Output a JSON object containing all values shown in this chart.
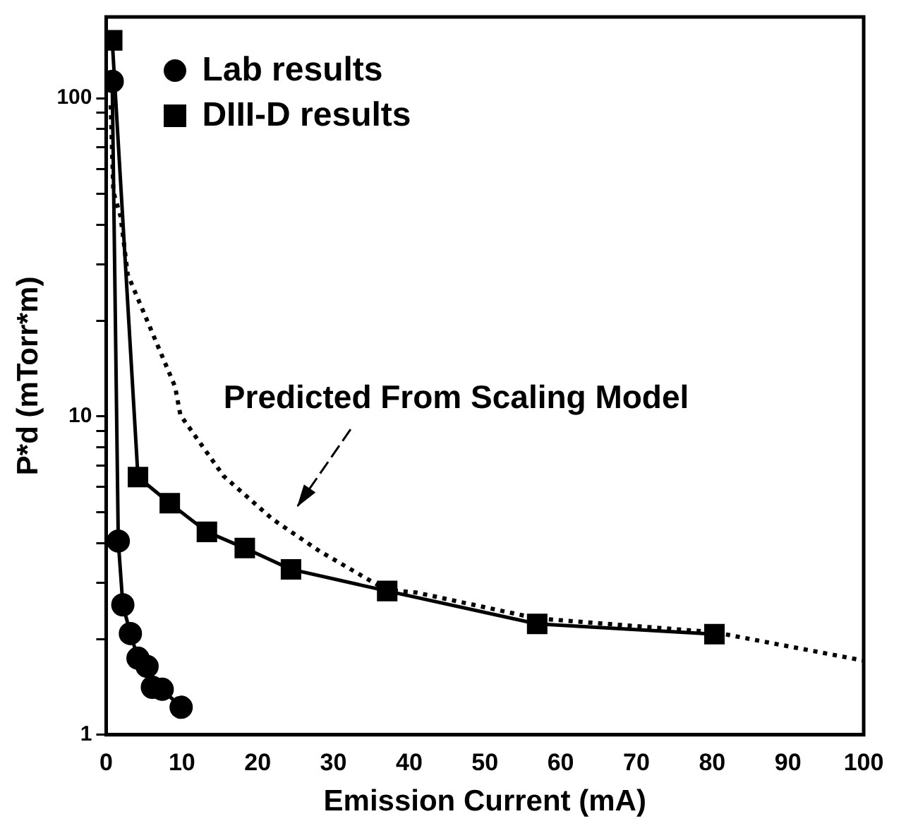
{
  "chart_data": {
    "type": "line",
    "xlabel": "Emission Current (mA)",
    "ylabel": "P*d (mTorr*m)",
    "xlim": [
      0,
      100
    ],
    "xticks": [
      0,
      10,
      20,
      30,
      40,
      50,
      60,
      70,
      80,
      90,
      100
    ],
    "ylim": [
      1,
      180
    ],
    "yticks": [
      1,
      {
        "value": 2,
        "label": null
      },
      {
        "value": 3,
        "label": null
      },
      {
        "value": 4,
        "label": null
      },
      {
        "value": 5,
        "label": null
      },
      {
        "value": 6,
        "label": null
      },
      {
        "value": 7,
        "label": null
      },
      {
        "value": 8,
        "label": null
      },
      {
        "value": 9,
        "label": null
      },
      10,
      {
        "value": 20,
        "label": null
      },
      {
        "value": 30,
        "label": null
      },
      {
        "value": 40,
        "label": null
      },
      {
        "value": 50,
        "label": null
      },
      {
        "value": 60,
        "label": null
      },
      {
        "value": 70,
        "label": null
      },
      {
        "value": 80,
        "label": null
      },
      {
        "value": 90,
        "label": null
      },
      100
    ],
    "log": "y",
    "grid": false,
    "legend": "top left",
    "annotations": [
      "Predicted From Scaling Model"
    ],
    "series": [
      {
        "name": "Lab results",
        "color": "#000000",
        "marker": "circle",
        "line_style": "solid",
        "x": [
          0.8,
          1.6,
          2.2,
          3.2,
          4.2,
          5.4,
          6.1,
          7.4,
          9.9
        ],
        "values": [
          113,
          4.06,
          2.56,
          2.08,
          1.74,
          1.64,
          1.41,
          1.39,
          1.22
        ]
      },
      {
        "name": "DIII-D results",
        "color": "#000000",
        "marker": "square",
        "line_style": "solid",
        "x": [
          0.8,
          4.2,
          8.4,
          13.3,
          18.3,
          24.4,
          37.1,
          56.9,
          80.3
        ],
        "values": [
          152,
          6.45,
          5.34,
          4.34,
          3.86,
          3.31,
          2.83,
          2.23,
          2.07
        ]
      },
      {
        "color": "#000000",
        "marker": "none",
        "line_style": "dotted",
        "x": [
          0.6,
          0.95,
          1.9,
          2.85,
          9.1,
          9.8,
          15.5,
          21.9,
          28.2,
          37,
          40.9,
          56.9,
          80.3,
          100
        ],
        "values": [
          95,
          50.7,
          42.6,
          27.9,
          12.4,
          10.1,
          6.5,
          4.77,
          3.77,
          2.85,
          2.8,
          2.32,
          2.1,
          1.71
        ]
      }
    ]
  }
}
